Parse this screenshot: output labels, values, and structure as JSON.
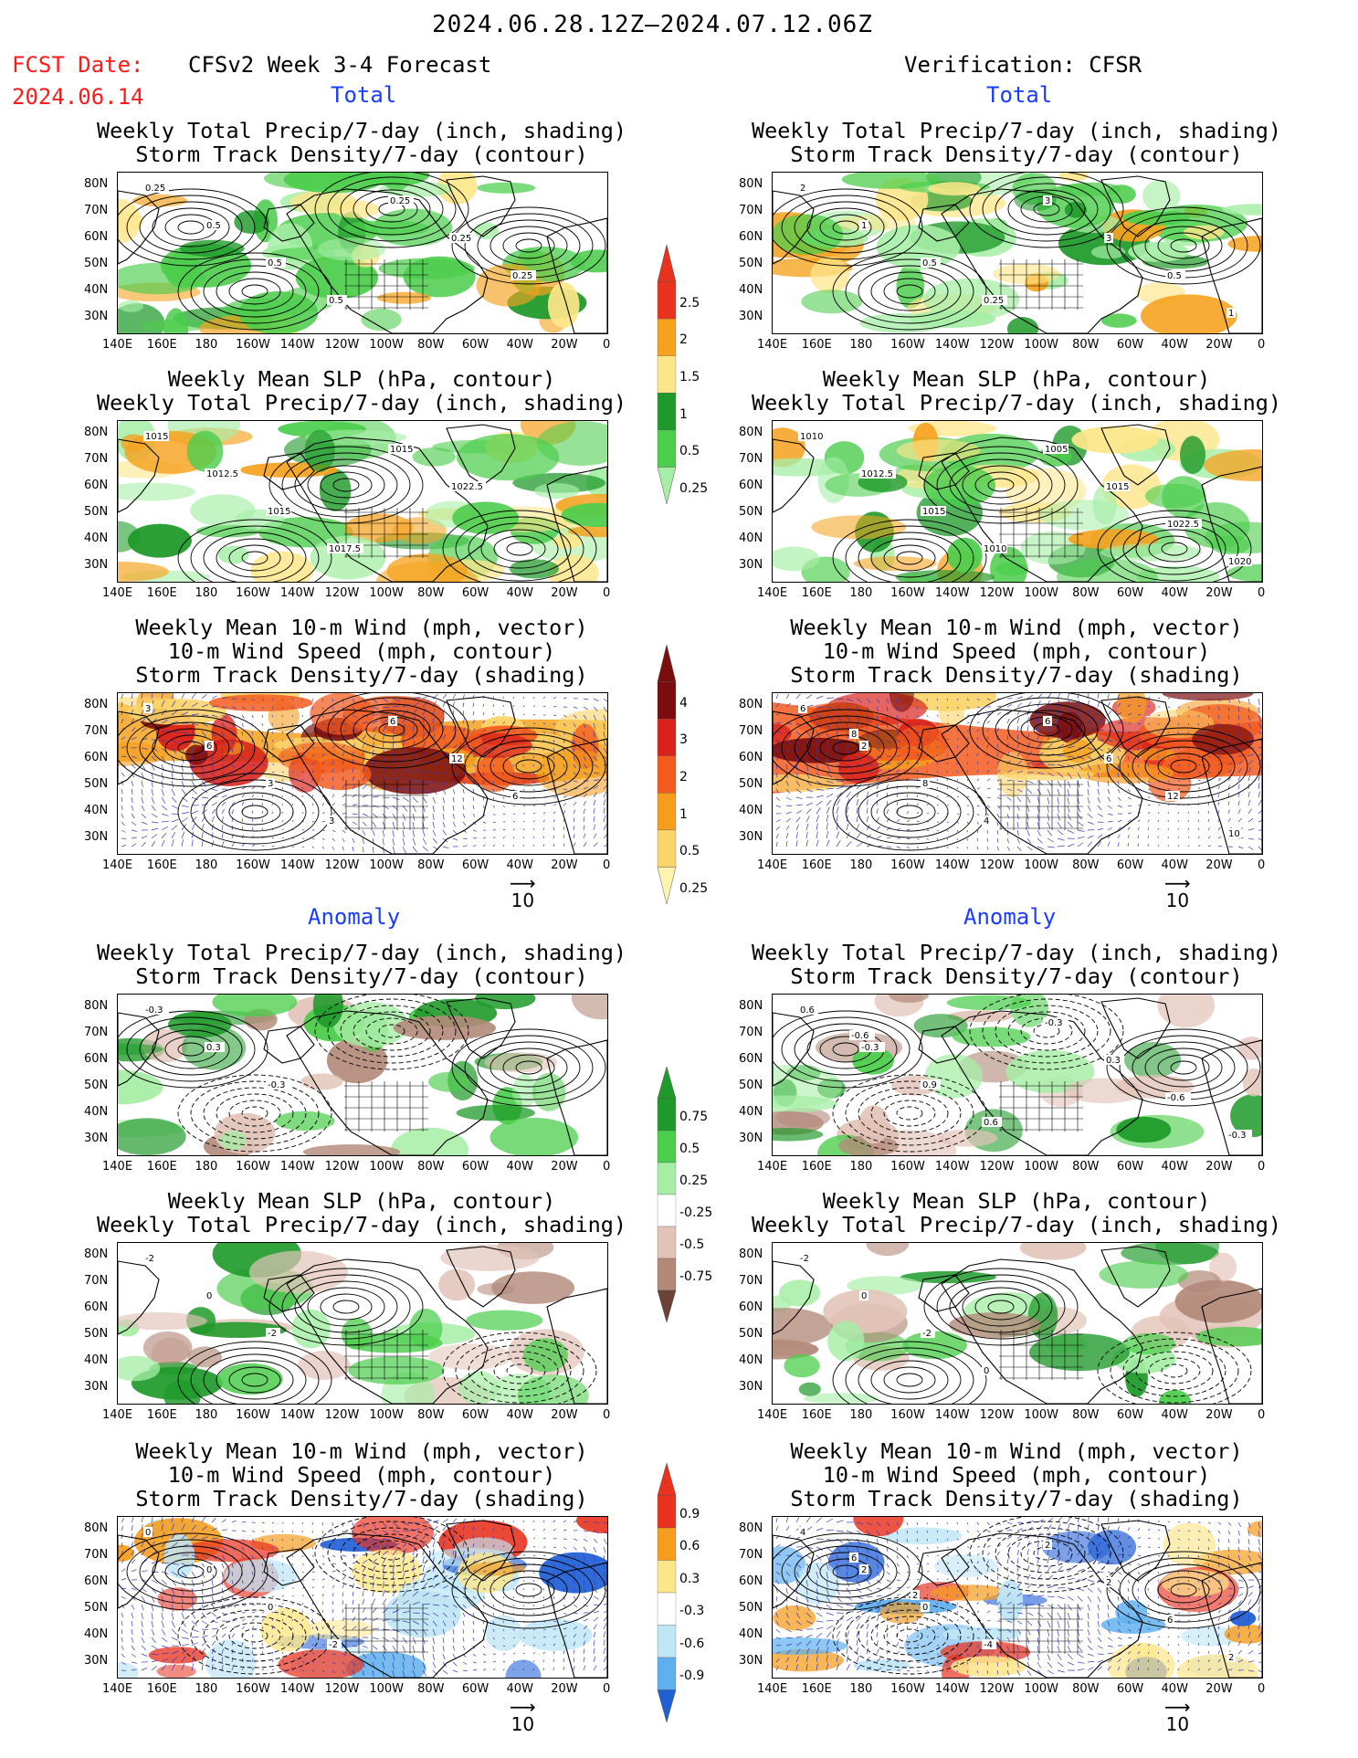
{
  "header": {
    "period": "2024.06.28.12Z–2024.07.12.06Z",
    "fcst_label": "FCST Date:",
    "fcst_date": "2024.06.14",
    "left_title": "CFSv2 Week 3-4 Forecast",
    "right_title": "Verification: CFSR"
  },
  "sections": {
    "total": "Total",
    "anomaly": "Anomaly"
  },
  "panel_titles": {
    "precip_storm": [
      "Weekly Total Precip/7-day (inch, shading)",
      "Storm Track Density/7-day (contour)"
    ],
    "slp_precip": [
      "Weekly Mean SLP (hPa, contour)",
      "Weekly Total Precip/7-day (inch, shading)"
    ],
    "wind": [
      "Weekly Mean 10-m Wind (mph, vector)",
      "10-m Wind Speed (mph, contour)",
      "Storm Track Density/7-day (shading)"
    ]
  },
  "axes": {
    "lat_ticks": [
      "80N",
      "70N",
      "60N",
      "50N",
      "40N",
      "30N"
    ],
    "lon_ticks": [
      "140E",
      "160E",
      "180",
      "160W",
      "140W",
      "120W",
      "100W",
      "80W",
      "60W",
      "40W",
      "20W",
      "0"
    ]
  },
  "vector_ref": {
    "label": "10"
  },
  "colorbars": {
    "precip_total": {
      "labels": [
        "2.5",
        "2",
        "1.5",
        "1",
        "0.5",
        "0.25"
      ],
      "colors": [
        "#e8321e",
        "#f5a21e",
        "#fde68a",
        "#1f9a2a",
        "#4ccd4c",
        "#a6eea6"
      ]
    },
    "storm_total": {
      "labels": [
        "4",
        "3",
        "2",
        "1",
        "0.5",
        "0.25"
      ],
      "colors": [
        "#7a0d0d",
        "#d9221a",
        "#f25a1e",
        "#f59d1e",
        "#fbd46a",
        "#fff3b0"
      ]
    },
    "precip_anom": {
      "labels": [
        "0.75",
        "0.5",
        "0.25",
        "-0.25",
        "-0.5",
        "-0.75"
      ],
      "colors": [
        "#1f9a2a",
        "#4ccd4c",
        "#a6eea6",
        "#ffffff",
        "#e2c3b8",
        "#b38a7a",
        "#6b4234"
      ]
    },
    "storm_anom": {
      "labels": [
        "0.9",
        "0.6",
        "0.3",
        "-0.3",
        "-0.6",
        "-0.9"
      ],
      "colors": [
        "#e8321e",
        "#f59d1e",
        "#fde68a",
        "#ffffff",
        "#bfe6f5",
        "#5fb0ee",
        "#1f5fd6"
      ]
    }
  },
  "panel_contour_labels": {
    "L1": [
      "0.25",
      "0.5",
      "0.5",
      "0.5",
      "0.25",
      "0.25",
      "0.25"
    ],
    "R1": [
      "2",
      "1",
      "0.5",
      "0.25",
      "3",
      "3",
      "0.5",
      "1"
    ],
    "L2": [
      "1015",
      "1012.5",
      "1015",
      "1017.5",
      "1015",
      "1022.5"
    ],
    "R2": [
      "1010",
      "1012.5",
      "1015",
      "1010",
      "1005",
      "1015",
      "1022.5",
      "1020"
    ],
    "L3": [
      "3",
      "6",
      "3",
      "3",
      "6",
      "12",
      "6"
    ],
    "R3": [
      "6",
      "2",
      "8",
      "4",
      "6",
      "6",
      "12",
      "10",
      "8"
    ],
    "L4": [
      "-0.3",
      "0.3",
      "-0.3"
    ],
    "R4": [
      "0.6",
      "-0.3",
      "0.9",
      "0.6",
      "-0.3",
      "0.3",
      "-0.6",
      "-0.3",
      "-0.6"
    ],
    "L5": [
      "-2",
      "0",
      "-2"
    ],
    "R5": [
      "-2",
      "0",
      "-2",
      "0"
    ],
    "L6": [
      "0",
      "0",
      "0",
      "-2"
    ],
    "R6": [
      "4",
      "2",
      "0",
      "-4",
      "2",
      "2",
      "6",
      "2",
      "6",
      "2"
    ]
  }
}
